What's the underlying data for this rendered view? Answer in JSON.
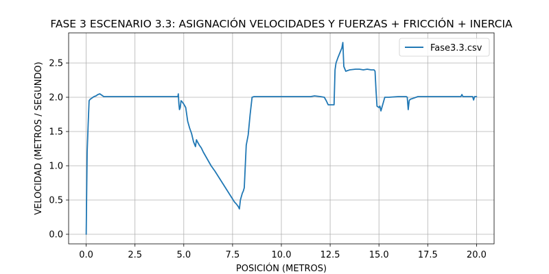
{
  "chart_data": {
    "type": "line",
    "title": "FASE 3 ESCENARIO 3.3: ASIGNACIÓN VELOCIDADES Y FUERZAS + FRICCIÓN + INERCIA",
    "xlabel": "POSICIÓN (METROS)",
    "ylabel": "VELOCIDAD (METROS / SEGUNDO)",
    "xlim": [
      -0.9,
      20.9
    ],
    "ylim": [
      -0.14,
      2.94
    ],
    "xticks": [
      0.0,
      2.5,
      5.0,
      7.5,
      10.0,
      12.5,
      15.0,
      17.5,
      20.0
    ],
    "xtick_labels": [
      "0.0",
      "2.5",
      "5.0",
      "7.5",
      "10.0",
      "12.5",
      "15.0",
      "17.5",
      "20.0"
    ],
    "yticks": [
      0.0,
      0.5,
      1.0,
      1.5,
      2.0,
      2.5
    ],
    "ytick_labels": [
      "0.0",
      "0.5",
      "1.0",
      "1.5",
      "2.0",
      "2.5"
    ],
    "grid": true,
    "legend_position": "top-right",
    "series": [
      {
        "name": "Fase3.3.csv",
        "color": "#1f77b4",
        "x": [
          0.0,
          0.02,
          0.05,
          0.1,
          0.15,
          0.2,
          0.3,
          0.4,
          0.5,
          0.6,
          0.7,
          0.8,
          0.9,
          1.0,
          1.5,
          2.0,
          2.5,
          3.0,
          3.5,
          4.0,
          4.5,
          4.7,
          4.72,
          4.75,
          4.78,
          4.82,
          4.86,
          4.9,
          5.0,
          5.1,
          5.2,
          5.3,
          5.4,
          5.5,
          5.6,
          5.65,
          5.7,
          5.8,
          5.9,
          6.0,
          6.2,
          6.4,
          6.6,
          6.8,
          7.0,
          7.2,
          7.4,
          7.6,
          7.7,
          7.8,
          7.85,
          7.9,
          7.95,
          8.0,
          8.05,
          8.1,
          8.2,
          8.3,
          8.4,
          8.5,
          8.6,
          8.7,
          9.0,
          10.0,
          11.0,
          11.5,
          11.7,
          12.0,
          12.2,
          12.3,
          12.4,
          12.5,
          12.7,
          12.75,
          12.8,
          12.9,
          13.0,
          13.1,
          13.15,
          13.2,
          13.3,
          13.5,
          13.8,
          14.0,
          14.2,
          14.4,
          14.6,
          14.7,
          14.75,
          14.8,
          14.85,
          14.9,
          15.0,
          15.05,
          15.1,
          15.2,
          15.3,
          15.5,
          16.0,
          16.4,
          16.45,
          16.5,
          16.55,
          16.6,
          16.7,
          17.0,
          17.5,
          18.0,
          18.5,
          19.0,
          19.2,
          19.25,
          19.3,
          19.5,
          19.8,
          19.85,
          19.9,
          20.0
        ],
        "y": [
          0.0,
          0.5,
          1.2,
          1.6,
          1.95,
          1.97,
          1.99,
          2.01,
          2.02,
          2.04,
          2.05,
          2.03,
          2.01,
          2.01,
          2.01,
          2.01,
          2.01,
          2.01,
          2.01,
          2.01,
          2.01,
          2.01,
          2.05,
          1.9,
          1.82,
          1.85,
          1.95,
          1.94,
          1.9,
          1.85,
          1.65,
          1.55,
          1.47,
          1.35,
          1.28,
          1.38,
          1.35,
          1.3,
          1.26,
          1.2,
          1.1,
          1.0,
          0.92,
          0.83,
          0.74,
          0.65,
          0.56,
          0.47,
          0.44,
          0.4,
          0.37,
          0.5,
          0.55,
          0.6,
          0.63,
          0.68,
          1.3,
          1.45,
          1.75,
          2.0,
          2.01,
          2.01,
          2.01,
          2.01,
          2.01,
          2.01,
          2.02,
          2.01,
          2.0,
          1.95,
          1.89,
          1.89,
          1.89,
          2.4,
          2.5,
          2.58,
          2.65,
          2.72,
          2.8,
          2.45,
          2.38,
          2.4,
          2.41,
          2.41,
          2.4,
          2.41,
          2.4,
          2.4,
          2.4,
          2.38,
          2.1,
          1.87,
          1.85,
          1.87,
          1.8,
          1.9,
          2.0,
          2.0,
          2.01,
          2.01,
          2.0,
          1.82,
          1.95,
          1.97,
          1.98,
          2.01,
          2.01,
          2.01,
          2.01,
          2.01,
          2.01,
          2.04,
          2.01,
          2.01,
          2.01,
          1.96,
          2.01,
          2.01
        ]
      }
    ]
  }
}
